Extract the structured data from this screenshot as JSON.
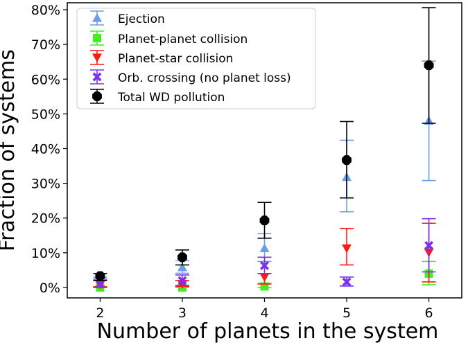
{
  "chart_data": {
    "type": "scatter",
    "xlabel": "Number of planets in the system",
    "ylabel": "Fraction of systems",
    "x": [
      2,
      3,
      4,
      5,
      6
    ],
    "xlim": [
      1.6,
      6.4
    ],
    "ylim": [
      -0.03,
      0.82
    ],
    "x_ticks": [
      {
        "value": 2,
        "label": "2"
      },
      {
        "value": 3,
        "label": "3"
      },
      {
        "value": 4,
        "label": "4"
      },
      {
        "value": 5,
        "label": "5"
      },
      {
        "value": 6,
        "label": "6"
      }
    ],
    "y_ticks": [
      {
        "value": 0.0,
        "label": "0%"
      },
      {
        "value": 0.1,
        "label": "10%"
      },
      {
        "value": 0.2,
        "label": "20%"
      },
      {
        "value": 0.3,
        "label": "30%"
      },
      {
        "value": 0.4,
        "label": "40%"
      },
      {
        "value": 0.5,
        "label": "50%"
      },
      {
        "value": 0.6,
        "label": "60%"
      },
      {
        "value": 0.7,
        "label": "70%"
      },
      {
        "value": 0.8,
        "label": "80%"
      }
    ],
    "grid": false,
    "legend_position": "top-left",
    "series": [
      {
        "name": "Ejection",
        "key": "ejection",
        "marker": "triangle-up",
        "color": "#6a9ee8",
        "values": [
          0.015,
          0.058,
          0.113,
          0.318,
          0.48
        ],
        "err_low": [
          0.0,
          0.041,
          0.075,
          0.218,
          0.308
        ],
        "err_high": [
          0.03,
          0.077,
          0.155,
          0.424,
          0.652
        ]
      },
      {
        "name": "Planet-planet collision",
        "key": "pp-collision",
        "marker": "square",
        "color": "#44ee22",
        "values": [
          0.0,
          0.0,
          0.003,
          null,
          0.04
        ],
        "err_low": [
          0.0,
          0.0,
          0.0,
          null,
          0.008
        ],
        "err_high": [
          0.002,
          0.002,
          0.012,
          null,
          0.075
        ]
      },
      {
        "name": "Planet-star collision",
        "key": "ps-collision",
        "marker": "triangle-down",
        "color": "#ff1a10",
        "values": [
          0.008,
          0.01,
          0.03,
          0.113,
          0.101
        ],
        "err_low": [
          0.002,
          0.003,
          0.01,
          0.065,
          0.016
        ],
        "err_high": [
          0.02,
          0.02,
          0.04,
          0.17,
          0.185
        ]
      },
      {
        "name": "Orb. crossing (no planet loss)",
        "key": "orb-crossing",
        "marker": "x-filled",
        "color": "#7733ee",
        "values": [
          0.01,
          0.02,
          0.063,
          0.016,
          0.121
        ],
        "err_low": [
          0.0,
          0.006,
          0.04,
          0.004,
          0.045
        ],
        "err_high": [
          0.024,
          0.036,
          0.087,
          0.03,
          0.198
        ]
      },
      {
        "name": "Total WD pollution",
        "key": "total-wd",
        "marker": "octagon",
        "color": "#000000",
        "values": [
          0.033,
          0.087,
          0.193,
          0.367,
          0.64
        ],
        "err_low": [
          0.02,
          0.065,
          0.142,
          0.258,
          0.473
        ],
        "err_high": [
          0.04,
          0.108,
          0.245,
          0.478,
          0.806
        ]
      }
    ]
  }
}
